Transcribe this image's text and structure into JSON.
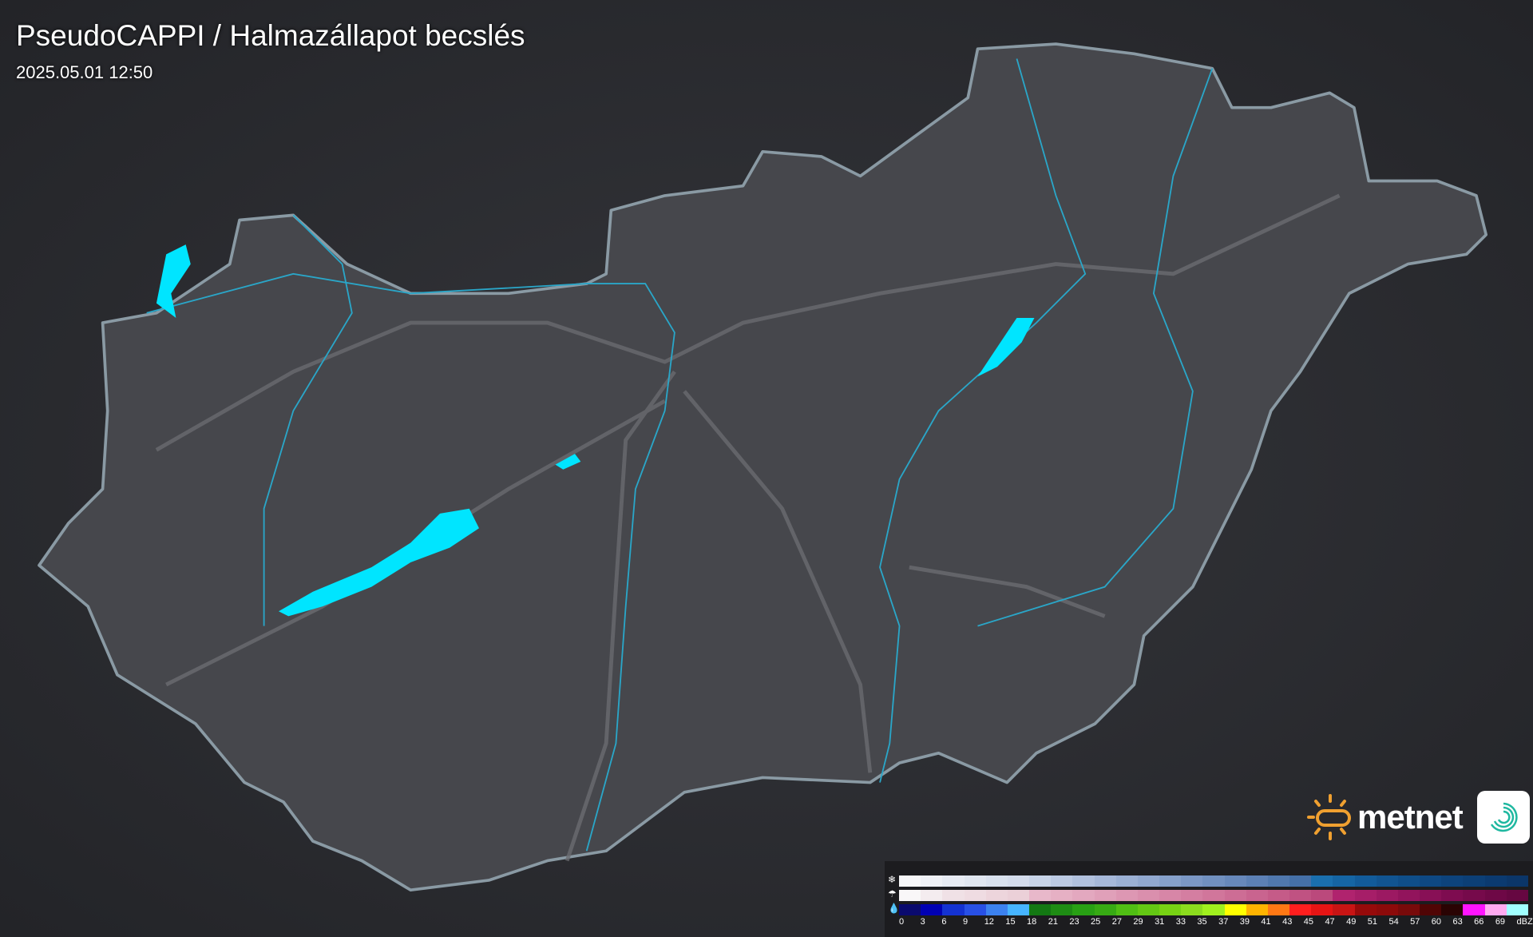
{
  "header": {
    "title": "PseudoCAPPI  / Halmazállapot becslés",
    "timestamp": "2025.05.01 12:50"
  },
  "logo": {
    "brand": "metnet"
  },
  "legend": {
    "unit": "dBZ",
    "rows": [
      {
        "icon": "snowflake-icon"
      },
      {
        "icon": "sleet-icon"
      },
      {
        "icon": "raindrop-icon"
      }
    ],
    "ticks": [
      "0",
      "3",
      "6",
      "9",
      "12",
      "15",
      "18",
      "21",
      "23",
      "25",
      "27",
      "29",
      "31",
      "33",
      "35",
      "37",
      "39",
      "41",
      "43",
      "45",
      "47",
      "49",
      "51",
      "54",
      "57",
      "60",
      "63",
      "66",
      "69"
    ],
    "snow_colors": [
      "#f7f7f9",
      "#eff1f6",
      "#e7ebf3",
      "#e0e6f0",
      "#d9e1ee",
      "#d4dcec",
      "#c8d4e8",
      "#bccae3",
      "#b1c1de",
      "#a6b8d9",
      "#9bb0d4",
      "#91a8cf",
      "#86a0ca",
      "#7b97c5",
      "#7190c0",
      "#6788bb",
      "#5c80b5",
      "#5078ae",
      "#4570a8",
      "#1a6fae",
      "#1565a4",
      "#125b9a",
      "#115491",
      "#0f4e89",
      "#0e4883",
      "#0d437c",
      "#0c3f76",
      "#0b3a70",
      "#0b3669"
    ],
    "sleet_colors": [
      "#f9f7f8",
      "#f4ecef",
      "#f0e1e6",
      "#efdce2",
      "#edd5dc",
      "#ebd0d8",
      "#e8b8ca",
      "#e6b0c4",
      "#e3a8bf",
      "#e0a0b9",
      "#dd97b3",
      "#da8fad",
      "#d786a7",
      "#d47ea1",
      "#d1769b",
      "#cd6d95",
      "#c9648f",
      "#c55b88",
      "#c05282",
      "#bb497c",
      "#b0236e",
      "#a61e68",
      "#9c1962",
      "#92145c",
      "#881056",
      "#7e0c50",
      "#760a4b",
      "#6e0846",
      "#660741"
    ],
    "rain_colors": [
      "#0a0a6e",
      "#0000b4",
      "#1432d2",
      "#2850e6",
      "#3c82f0",
      "#46b4ff",
      "#137813",
      "#1e8c14",
      "#28a014",
      "#37aa14",
      "#50be14",
      "#64c814",
      "#78d214",
      "#8cdc1e",
      "#a0f01e",
      "#ffff00",
      "#ffb400",
      "#ff7814",
      "#ff1e1e",
      "#e61414",
      "#c81414",
      "#960a0a",
      "#8c0a0a",
      "#780a0a",
      "#500505",
      "#2a0303",
      "#ff14ff",
      "#ffaaf0",
      "#a0ffff"
    ]
  },
  "map": {
    "lake_color": "#00e5ff",
    "border_color": "#8a9aa4",
    "river_color": "#2aa6c8"
  }
}
